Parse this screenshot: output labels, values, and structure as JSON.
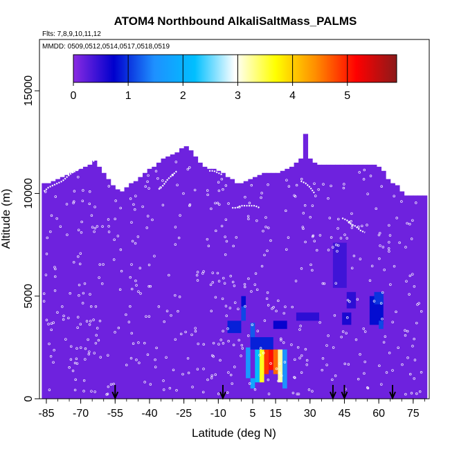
{
  "chart_data": {
    "type": "heatmap",
    "title": "ATOM4 Northbound AlkaliSaltMass_PALMS",
    "subtitle_flights": "Flts: 7,8,9,10,11,12",
    "subtitle_dates": "MMDD: 0509,0512,0514,0517,0518,0519",
    "xlabel": "Latitude (deg N)",
    "ylabel": "Altitude (m)",
    "xlim": [
      -88,
      82
    ],
    "ylim": [
      0,
      17500
    ],
    "x_ticks": [
      -85,
      -70,
      -55,
      -40,
      -25,
      -10,
      5,
      15,
      30,
      45,
      60,
      75
    ],
    "x_tick_labels": [
      "-85",
      "-70",
      "-55",
      "-40",
      "-25",
      "-10",
      "5",
      "15",
      "30",
      "45",
      "60",
      "75"
    ],
    "y_ticks": [
      0,
      5000,
      10000,
      15000
    ],
    "y_tick_labels": [
      "0",
      "5000",
      "10000",
      "15000"
    ],
    "colorbar": {
      "range": [
        0,
        5.9
      ],
      "ticks": [
        0,
        1,
        2,
        3,
        4,
        5
      ],
      "tick_labels": [
        "0",
        "1",
        "2",
        "3",
        "4",
        "5"
      ],
      "colors": [
        "#8a2be2",
        "#0000cd",
        "#1e90ff",
        "#00bfff",
        "#ffffff",
        "#ffff00",
        "#ff8c00",
        "#ff0000",
        "#8b1a1a"
      ]
    },
    "background_value": 0.15,
    "coverage_envelope": [
      [
        -86,
        0,
        10500
      ],
      [
        -84,
        0,
        10500
      ],
      [
        -82,
        0,
        10600
      ],
      [
        -80,
        0,
        10700
      ],
      [
        -78,
        0,
        10800
      ],
      [
        -76,
        0,
        10900
      ],
      [
        -74,
        0,
        11000
      ],
      [
        -72,
        0,
        11100
      ],
      [
        -70,
        0,
        11200
      ],
      [
        -68,
        0,
        11300
      ],
      [
        -66,
        0,
        11400
      ],
      [
        -64,
        0,
        11600
      ],
      [
        -62,
        0,
        11300
      ],
      [
        -60,
        0,
        11000
      ],
      [
        -58,
        0,
        10700
      ],
      [
        -56,
        0,
        10400
      ],
      [
        -54,
        0,
        10200
      ],
      [
        -52,
        0,
        10100
      ],
      [
        -50,
        0,
        10300
      ],
      [
        -48,
        0,
        10500
      ],
      [
        -46,
        0,
        10600
      ],
      [
        -44,
        0,
        10800
      ],
      [
        -42,
        0,
        11000
      ],
      [
        -40,
        0,
        11200
      ],
      [
        -38,
        0,
        11300
      ],
      [
        -36,
        0,
        11500
      ],
      [
        -34,
        0,
        11700
      ],
      [
        -32,
        0,
        11800
      ],
      [
        -30,
        0,
        11900
      ],
      [
        -28,
        0,
        12000
      ],
      [
        -26,
        0,
        12200
      ],
      [
        -24,
        0,
        12300
      ],
      [
        -22,
        0,
        12100
      ],
      [
        -20,
        0,
        11800
      ],
      [
        -18,
        0,
        11500
      ],
      [
        -16,
        0,
        11300
      ],
      [
        -14,
        0,
        11200
      ],
      [
        -12,
        0,
        11200
      ],
      [
        -10,
        0,
        11100
      ],
      [
        -8,
        0,
        11000
      ],
      [
        -6,
        0,
        10800
      ],
      [
        -4,
        0,
        10700
      ],
      [
        -2,
        0,
        10500
      ],
      [
        0,
        0,
        10500
      ],
      [
        2,
        0,
        10600
      ],
      [
        4,
        0,
        10700
      ],
      [
        6,
        0,
        10800
      ],
      [
        8,
        0,
        10900
      ],
      [
        10,
        0,
        11000
      ],
      [
        12,
        0,
        11000
      ],
      [
        14,
        0,
        11000
      ],
      [
        16,
        0,
        11000
      ],
      [
        18,
        0,
        11100
      ],
      [
        20,
        0,
        11200
      ],
      [
        22,
        0,
        11300
      ],
      [
        24,
        0,
        11500
      ],
      [
        26,
        0,
        11700
      ],
      [
        28,
        0,
        12900
      ],
      [
        30,
        0,
        11700
      ],
      [
        32,
        0,
        11500
      ],
      [
        34,
        0,
        11400
      ],
      [
        36,
        0,
        11400
      ],
      [
        38,
        0,
        11400
      ],
      [
        40,
        0,
        11400
      ],
      [
        42,
        0,
        11400
      ],
      [
        44,
        0,
        11400
      ],
      [
        46,
        0,
        11400
      ],
      [
        48,
        0,
        11400
      ],
      [
        50,
        0,
        11400
      ],
      [
        52,
        0,
        11400
      ],
      [
        54,
        0,
        11400
      ],
      [
        56,
        0,
        11400
      ],
      [
        58,
        0,
        11400
      ],
      [
        60,
        0,
        11300
      ],
      [
        62,
        0,
        11100
      ],
      [
        64,
        0,
        10700
      ],
      [
        66,
        0,
        10500
      ],
      [
        68,
        0,
        10400
      ],
      [
        70,
        0,
        10100
      ],
      [
        72,
        0,
        9900
      ],
      [
        74,
        0,
        9900
      ],
      [
        76,
        0,
        9900
      ],
      [
        78,
        0,
        9900
      ],
      [
        80,
        0,
        9900
      ]
    ],
    "hotspots": [
      {
        "lat": [
          -6,
          0
        ],
        "alt": [
          3200,
          3800
        ],
        "value": 0.9
      },
      {
        "lat": [
          0,
          2
        ],
        "alt": [
          3800,
          4500
        ],
        "value": 1.1
      },
      {
        "lat": [
          0,
          2
        ],
        "alt": [
          4500,
          5000
        ],
        "value": 0.8
      },
      {
        "lat": [
          4,
          6
        ],
        "alt": [
          3000,
          3700
        ],
        "value": 1.2
      },
      {
        "lat": [
          4,
          6
        ],
        "alt": [
          2500,
          3000
        ],
        "value": 1.4
      },
      {
        "lat": [
          2,
          4
        ],
        "alt": [
          1000,
          2500
        ],
        "value": 1.6
      },
      {
        "lat": [
          4,
          6
        ],
        "alt": [
          500,
          1000
        ],
        "value": 1.8
      },
      {
        "lat": [
          6,
          8
        ],
        "alt": [
          800,
          2400
        ],
        "value": 2.2
      },
      {
        "lat": [
          8,
          10
        ],
        "alt": [
          800,
          2400
        ],
        "value": 3.6
      },
      {
        "lat": [
          10,
          12
        ],
        "alt": [
          1200,
          2400
        ],
        "value": 4.9
      },
      {
        "lat": [
          12,
          14
        ],
        "alt": [
          1400,
          2400
        ],
        "value": 5.1
      },
      {
        "lat": [
          14,
          16
        ],
        "alt": [
          1200,
          2400
        ],
        "value": 4.6
      },
      {
        "lat": [
          16,
          18
        ],
        "alt": [
          800,
          2400
        ],
        "value": 3.2
      },
      {
        "lat": [
          18,
          20
        ],
        "alt": [
          500,
          2400
        ],
        "value": 1.5
      },
      {
        "lat": [
          4,
          14
        ],
        "alt": [
          2400,
          3000
        ],
        "value": 0.9
      },
      {
        "lat": [
          14,
          20
        ],
        "alt": [
          3400,
          3800
        ],
        "value": 0.7
      },
      {
        "lat": [
          44,
          48
        ],
        "alt": [
          3600,
          4200
        ],
        "value": 0.6
      },
      {
        "lat": [
          46,
          50
        ],
        "alt": [
          4400,
          5200
        ],
        "value": 0.5
      },
      {
        "lat": [
          56,
          62
        ],
        "alt": [
          3600,
          5000
        ],
        "value": 0.8
      },
      {
        "lat": [
          58,
          62
        ],
        "alt": [
          4600,
          5200
        ],
        "value": 1.0
      },
      {
        "lat": [
          60,
          62
        ],
        "alt": [
          3400,
          3800
        ],
        "value": 1.1
      },
      {
        "lat": [
          40,
          46
        ],
        "alt": [
          5400,
          7600
        ],
        "value": 0.4
      },
      {
        "lat": [
          24,
          34
        ],
        "alt": [
          3800,
          4200
        ],
        "value": 0.5
      }
    ],
    "flight_tracks": [
      {
        "lat": [
          -86,
          -84,
          -82,
          -80,
          -78,
          -76,
          -74,
          -72,
          -70,
          -68,
          -66,
          -64
        ],
        "alt": [
          10100,
          10300,
          10400,
          10500,
          10600,
          10800,
          11000,
          11100,
          11300,
          11400,
          11500,
          11600
        ]
      },
      {
        "lat": [
          -36,
          -34,
          -32,
          -30,
          -28
        ],
        "alt": [
          10200,
          10400,
          10700,
          10900,
          11100
        ]
      },
      {
        "lat": [
          -14,
          -12,
          -10,
          -8
        ],
        "alt": [
          11100,
          11100,
          11000,
          10900
        ]
      },
      {
        "lat": [
          -4,
          -2,
          0,
          2,
          4,
          6,
          8
        ],
        "alt": [
          9300,
          9300,
          9400,
          9400,
          9400,
          9400,
          9300
        ]
      },
      {
        "lat": [
          26,
          28,
          30,
          32
        ],
        "alt": [
          10600,
          10500,
          10300,
          10000
        ]
      },
      {
        "lat": [
          44,
          46,
          48,
          50,
          52,
          54
        ],
        "alt": [
          8800,
          8700,
          8500,
          8400,
          8200,
          8100
        ]
      },
      {
        "lat": [
          72,
          74,
          76,
          78
        ],
        "alt": [
          10900,
          11000,
          11200,
          11400
        ]
      }
    ],
    "profile_markers_lat": [
      -55,
      -8,
      40,
      45,
      66
    ]
  }
}
